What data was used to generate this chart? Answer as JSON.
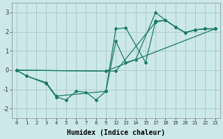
{
  "xlabel": "Humidex (Indice chaleur)",
  "ylabel": "",
  "bg_color": "#cce8e8",
  "grid_color": "#aacccc",
  "line_color": "#1a7a6a",
  "ylim": [
    -2.5,
    3.5
  ],
  "yticks": [
    -2,
    -1,
    0,
    1,
    2,
    3
  ],
  "x_labels": [
    "0",
    "1",
    "2",
    "3",
    "4",
    "5",
    "6",
    "7",
    "8",
    "9",
    "12",
    "13",
    "14",
    "15",
    "17",
    "18",
    "19",
    "20",
    "21",
    "22",
    "23"
  ],
  "x_values": [
    0,
    1,
    2,
    3,
    4,
    5,
    6,
    7,
    8,
    9,
    12,
    13,
    14,
    15,
    17,
    18,
    19,
    20,
    21,
    22,
    23
  ],
  "series": [
    {
      "hx": [
        0,
        1,
        3,
        4,
        5,
        6,
        7,
        8,
        9,
        12,
        13,
        14,
        17,
        18,
        19,
        20,
        21,
        22,
        23
      ],
      "y": [
        0.0,
        -0.3,
        -0.7,
        -1.4,
        -1.55,
        -1.1,
        -1.15,
        -1.55,
        -1.1,
        1.5,
        0.4,
        0.55,
        3.0,
        2.6,
        2.25,
        1.95,
        2.1,
        2.15,
        2.15
      ]
    },
    {
      "hx": [
        0,
        1,
        3,
        4,
        9,
        12,
        13,
        15,
        17,
        18,
        19,
        20,
        21,
        22,
        23
      ],
      "y": [
        0.0,
        -0.3,
        -0.65,
        -1.35,
        -1.1,
        2.15,
        2.2,
        0.4,
        2.55,
        2.6,
        2.25,
        1.95,
        2.1,
        2.15,
        2.15
      ]
    },
    {
      "hx": [
        0,
        9,
        12,
        17,
        18,
        19,
        20,
        21,
        22,
        23
      ],
      "y": [
        0.0,
        -0.05,
        -0.05,
        2.5,
        2.6,
        2.25,
        1.95,
        2.1,
        2.15,
        2.15
      ]
    },
    {
      "hx": [
        0,
        9,
        23
      ],
      "y": [
        0.0,
        -0.05,
        2.15
      ]
    }
  ]
}
